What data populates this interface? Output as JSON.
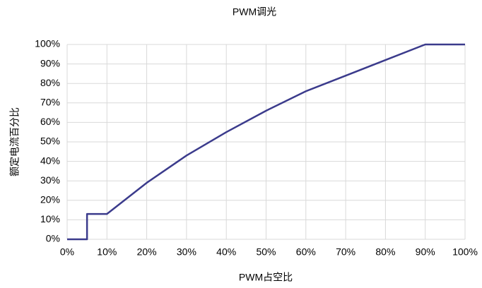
{
  "chart_data": {
    "type": "line",
    "title": "PWM调光",
    "xlabel": "PWM占空比",
    "ylabel": "额定电流百分比",
    "x": [
      0,
      5,
      5,
      10,
      20,
      30,
      40,
      50,
      60,
      70,
      80,
      90,
      100
    ],
    "series": [
      {
        "color": "#3b3b8c",
        "values": [
          0,
          0,
          13,
          13,
          29,
          43,
          55,
          66,
          76,
          84,
          92,
          100,
          100
        ]
      }
    ],
    "xlim": [
      0,
      100
    ],
    "ylim": [
      0,
      100
    ],
    "xticks": [
      {
        "value": 0,
        "label": "0%"
      },
      {
        "value": 10,
        "label": "10%"
      },
      {
        "value": 20,
        "label": "20%"
      },
      {
        "value": 30,
        "label": "30%"
      },
      {
        "value": 40,
        "label": "40%"
      },
      {
        "value": 50,
        "label": "50%"
      },
      {
        "value": 60,
        "label": "60%"
      },
      {
        "value": 70,
        "label": "70%"
      },
      {
        "value": 80,
        "label": "80%"
      },
      {
        "value": 90,
        "label": "90%"
      },
      {
        "value": 100,
        "label": "100%"
      }
    ],
    "yticks": [
      {
        "value": 0,
        "label": "0%"
      },
      {
        "value": 10,
        "label": "10%"
      },
      {
        "value": 20,
        "label": "20%"
      },
      {
        "value": 30,
        "label": "30%"
      },
      {
        "value": 40,
        "label": "40%"
      },
      {
        "value": 50,
        "label": "50%"
      },
      {
        "value": 60,
        "label": "60%"
      },
      {
        "value": 70,
        "label": "70%"
      },
      {
        "value": 80,
        "label": "80%"
      },
      {
        "value": 90,
        "label": "90%"
      },
      {
        "value": 100,
        "label": "100%"
      }
    ],
    "grid": true
  }
}
